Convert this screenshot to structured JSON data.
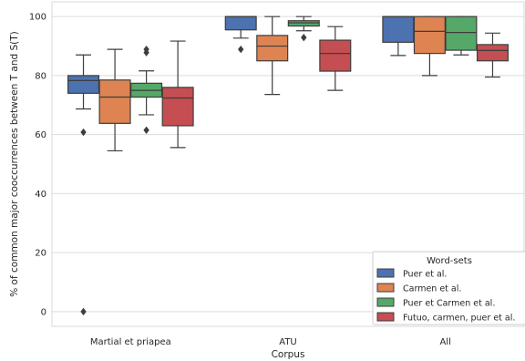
{
  "chart_data": {
    "type": "box",
    "title": "",
    "xlabel": "Corpus",
    "ylabel": "% of common major cooccurrences between T and S(T)",
    "categories": [
      "Martial et priapea",
      "ATU",
      "All"
    ],
    "ylim": [
      -5,
      105
    ],
    "yticks": [
      0,
      20,
      40,
      60,
      80,
      100
    ],
    "grid": "horizontal",
    "legend": {
      "title": "Word-sets",
      "placement": "lower-right"
    },
    "series": [
      {
        "name": "Puer et al.",
        "color": "#4c72b0",
        "boxes": [
          {
            "whislo": 68.7,
            "q1": 74.0,
            "med": 78.3,
            "q3": 80.0,
            "whishi": 87.0,
            "fliers": [
              60.8,
              0.0
            ]
          },
          {
            "whislo": 92.7,
            "q1": 95.5,
            "med": 100.0,
            "q3": 100.0,
            "whishi": 100.0,
            "fliers": [
              88.9
            ]
          },
          {
            "whislo": 86.8,
            "q1": 91.3,
            "med": 100.0,
            "q3": 100.0,
            "whishi": 100.0,
            "fliers": []
          }
        ]
      },
      {
        "name": "Carmen et al.",
        "color": "#dd8452",
        "boxes": [
          {
            "whislo": 54.5,
            "q1": 63.8,
            "med": 72.7,
            "q3": 78.5,
            "whishi": 88.9,
            "fliers": []
          },
          {
            "whislo": 73.6,
            "q1": 85.0,
            "med": 90.0,
            "q3": 93.6,
            "whishi": 100.0,
            "fliers": []
          },
          {
            "whislo": 80.0,
            "q1": 87.5,
            "med": 95.0,
            "q3": 100.0,
            "whishi": 100.0,
            "fliers": []
          }
        ]
      },
      {
        "name": "Puer et Carmen et al.",
        "color": "#55a868",
        "boxes": [
          {
            "whislo": 66.7,
            "q1": 72.7,
            "med": 75.0,
            "q3": 77.4,
            "whishi": 81.6,
            "fliers": [
              61.5,
              87.8,
              88.9
            ]
          },
          {
            "whislo": 95.2,
            "q1": 96.8,
            "med": 97.9,
            "q3": 98.6,
            "whishi": 100.0,
            "fliers": [
              92.9
            ]
          },
          {
            "whislo": 87.0,
            "q1": 88.6,
            "med": 94.6,
            "q3": 100.0,
            "whishi": 100.0,
            "fliers": []
          }
        ]
      },
      {
        "name": "Futuo, carmen, puer et al.",
        "color": "#c44e52",
        "boxes": [
          {
            "whislo": 55.6,
            "q1": 63.0,
            "med": 72.4,
            "q3": 76.0,
            "whishi": 91.7,
            "fliers": []
          },
          {
            "whislo": 75.0,
            "q1": 81.5,
            "med": 87.5,
            "q3": 92.0,
            "whishi": 96.6,
            "fliers": []
          },
          {
            "whislo": 79.5,
            "q1": 85.0,
            "med": 88.5,
            "q3": 90.5,
            "whishi": 94.4,
            "fliers": []
          }
        ]
      }
    ]
  }
}
